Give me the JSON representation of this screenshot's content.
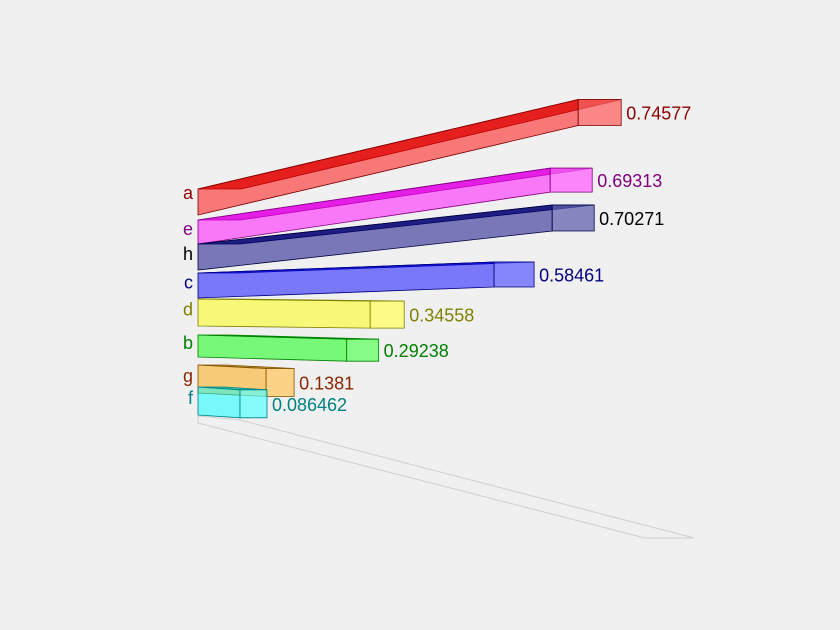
{
  "chart_data": {
    "type": "bar",
    "orientation": "horizontal",
    "style": "3d",
    "grid": false,
    "legend": "none",
    "xlim": [
      0,
      0.8
    ],
    "bars": [
      {
        "category": "a",
        "value": 0.74577,
        "label": "0.74577",
        "color": "#ff0000",
        "text_color": "#8b0000"
      },
      {
        "category": "e",
        "value": 0.69313,
        "label": "0.69313",
        "color": "#ff00ff",
        "text_color": "#800080"
      },
      {
        "category": "h",
        "value": 0.70271,
        "label": "0.70271",
        "color": "#000080",
        "text_color": "#000000"
      },
      {
        "category": "c",
        "value": 0.58461,
        "label": "0.58461",
        "color": "#0000ff",
        "text_color": "#000080"
      },
      {
        "category": "d",
        "value": 0.34558,
        "label": "0.34558",
        "color": "#ffff00",
        "text_color": "#808000"
      },
      {
        "category": "b",
        "value": 0.29238,
        "label": "0.29238",
        "color": "#00ff00",
        "text_color": "#008000"
      },
      {
        "category": "g",
        "value": 0.1381,
        "label": "0.1381",
        "color": "#ffa500",
        "text_color": "#8b2500"
      },
      {
        "category": "f",
        "value": 0.086462,
        "label": "0.086462",
        "color": "#00ffff",
        "text_color": "#008080"
      }
    ]
  }
}
